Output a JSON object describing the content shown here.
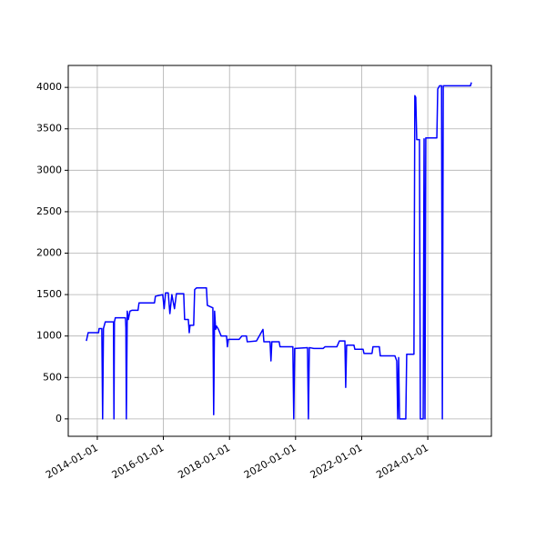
{
  "chart_data": {
    "type": "line",
    "x": [
      "2013-09-02",
      "2013-09-22",
      "2014-01-15",
      "2014-01-21",
      "2014-02-20",
      "2014-03-01",
      "2014-03-10",
      "2014-03-30",
      "2014-06-29",
      "2014-07-04",
      "2014-07-09",
      "2014-07-19",
      "2014-11-08",
      "2014-11-13",
      "2014-11-18",
      "2014-11-28",
      "2014-12-10",
      "2014-12-28",
      "2015-01-18",
      "2015-03-27",
      "2015-04-07",
      "2015-09-25",
      "2015-10-05",
      "2015-12-25",
      "2016-01-10",
      "2016-01-25",
      "2016-02-24",
      "2016-03-13",
      "2016-04-04",
      "2016-05-03",
      "2016-05-24",
      "2016-08-13",
      "2016-08-23",
      "2016-10-03",
      "2016-10-13",
      "2016-10-22",
      "2016-12-01",
      "2016-12-12",
      "2017-01-01",
      "2017-04-21",
      "2017-05-01",
      "2017-07-01",
      "2017-07-10",
      "2017-07-20",
      "2017-08-01",
      "2017-08-10",
      "2017-09-01",
      "2017-10-01",
      "2017-11-29",
      "2017-12-09",
      "2017-12-19",
      "2018-04-18",
      "2018-05-18",
      "2018-07-07",
      "2018-07-16",
      "2018-10-26",
      "2019-01-06",
      "2019-01-16",
      "2019-03-25",
      "2019-04-04",
      "2019-04-14",
      "2019-07-04",
      "2019-07-13",
      "2019-12-02",
      "2019-12-12",
      "2019-12-22",
      "2020-05-12",
      "2020-05-22",
      "2020-06-01",
      "2020-07-21",
      "2020-11-01",
      "2020-11-21",
      "2021-04-01",
      "2021-04-29",
      "2021-06-29",
      "2021-07-08",
      "2021-07-18",
      "2021-10-07",
      "2021-10-17",
      "2022-01-16",
      "2022-01-26",
      "2022-04-25",
      "2022-05-05",
      "2022-07-15",
      "2022-07-25",
      "2023-01-03",
      "2023-01-23",
      "2023-02-03",
      "2023-02-13",
      "2023-02-23",
      "2023-05-03",
      "2023-05-13",
      "2023-08-01",
      "2023-08-11",
      "2023-08-21",
      "2023-09-01",
      "2023-10-01",
      "2023-10-11",
      "2023-11-11",
      "2023-11-21",
      "2023-12-01",
      "2023-12-10",
      "2024-04-10",
      "2024-04-20",
      "2024-05-10",
      "2024-06-01",
      "2024-06-10",
      "2024-06-20",
      "2025-04-17",
      "2025-04-27"
    ],
    "series": [
      {
        "color": "#0000ff",
        "values": [
          940,
          1040,
          1040,
          1090,
          1090,
          0,
          1090,
          1170,
          1170,
          0,
          1170,
          1220,
          1220,
          1100,
          0,
          1300,
          1200,
          1300,
          1310,
          1310,
          1400,
          1400,
          1480,
          1500,
          1330,
          1520,
          1520,
          1270,
          1500,
          1330,
          1510,
          1510,
          1200,
          1200,
          1040,
          1130,
          1130,
          1560,
          1580,
          1580,
          1370,
          1340,
          50,
          1300,
          1080,
          1120,
          1080,
          1000,
          1000,
          870,
          960,
          960,
          1000,
          1000,
          930,
          940,
          1080,
          930,
          930,
          700,
          930,
          930,
          870,
          870,
          0,
          850,
          860,
          0,
          860,
          850,
          850,
          870,
          870,
          940,
          940,
          380,
          890,
          890,
          840,
          840,
          790,
          790,
          870,
          870,
          760,
          760,
          700,
          0,
          740,
          0,
          0,
          780,
          780,
          3900,
          3880,
          3370,
          3370,
          0,
          0,
          3380,
          0,
          3390,
          3390,
          3980,
          4020,
          4020,
          0,
          4020,
          4020,
          4060
        ]
      }
    ],
    "xlim": [
      "2013-02-14",
      "2025-12-04"
    ],
    "xticks": [
      "2014-01-01",
      "2016-01-01",
      "2018-01-01",
      "2020-01-01",
      "2022-01-01",
      "2024-01-01"
    ],
    "ylim": [
      -210,
      4265
    ],
    "yticks": [
      0,
      500,
      1000,
      1500,
      2000,
      2500,
      3000,
      3500,
      4000
    ],
    "grid": true
  }
}
